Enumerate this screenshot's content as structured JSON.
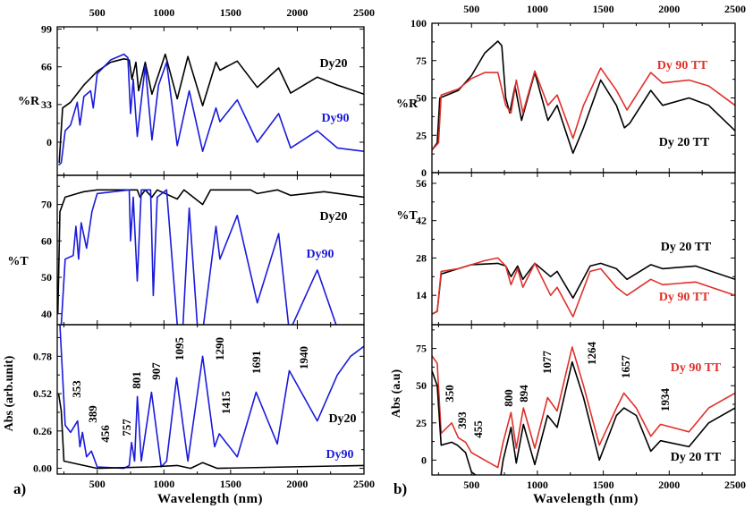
{
  "colors": {
    "black": "#000000",
    "blue": "#1a1adc",
    "red": "#e0302a"
  },
  "chart_data": [
    {
      "type": "line",
      "panel_label": "a)",
      "xlabel": "Wavelength (nm)",
      "xlim": [
        200,
        2500
      ],
      "xticks": [
        500,
        1000,
        1500,
        2000,
        2500
      ],
      "subplots": [
        {
          "ylabel": "%R",
          "ylim": [
            -29,
            101
          ],
          "yticks": [
            0,
            33,
            66,
            99
          ],
          "series": [
            {
              "name": "Dy20",
              "color": "#000000",
              "x": [
                215,
                240,
                300,
                400,
                500,
                600,
                700,
                740,
                760,
                790,
                810,
                860,
                910,
                1010,
                1100,
                1180,
                1290,
                1390,
                1420,
                1550,
                1700,
                1860,
                1950,
                2150,
                2300,
                2500
              ],
              "y": [
                -18,
                30,
                35,
                50,
                62,
                70,
                73,
                72,
                55,
                70,
                45,
                70,
                42,
                77,
                38,
                75,
                32,
                70,
                63,
                71,
                48,
                65,
                43,
                57,
                50,
                42
              ]
            },
            {
              "name": "Dy90",
              "color": "#1a1adc",
              "x": [
                210,
                230,
                260,
                300,
                350,
                370,
                400,
                450,
                470,
                500,
                600,
                700,
                730,
                750,
                770,
                800,
                860,
                910,
                960,
                1020,
                1100,
                1190,
                1290,
                1390,
                1420,
                1550,
                1700,
                1860,
                1950,
                2150,
                2300,
                2500
              ],
              "y": [
                -20,
                -18,
                10,
                15,
                35,
                15,
                40,
                45,
                30,
                60,
                72,
                77,
                74,
                25,
                55,
                5,
                67,
                2,
                50,
                70,
                -3,
                45,
                -8,
                30,
                18,
                37,
                0,
                25,
                -5,
                10,
                -5,
                -8
              ]
            }
          ]
        },
        {
          "ylabel": "%T",
          "ylim": [
            37,
            78
          ],
          "yticks": [
            40,
            50,
            60,
            70
          ],
          "series": [
            {
              "name": "Dy20",
              "color": "#000000",
              "x": [
                205,
                220,
                260,
                350,
                400,
                500,
                800,
                820,
                860,
                910,
                950,
                1100,
                1150,
                1290,
                1350,
                1650,
                1700,
                1850,
                1950,
                2200,
                2500
              ],
              "y": [
                40,
                68,
                72,
                73,
                73.5,
                74,
                74,
                72,
                74,
                72,
                74,
                71.5,
                74,
                70,
                74,
                74,
                73,
                74,
                72.5,
                73.5,
                72
              ]
            },
            {
              "name": "Dy90",
              "color": "#1a1adc",
              "x": [
                230,
                260,
                320,
                340,
                360,
                380,
                420,
                460,
                500,
                740,
                750,
                770,
                800,
                830,
                900,
                920,
                950,
                1020,
                1100,
                1140,
                1190,
                1250,
                1290,
                1390,
                1420,
                1550,
                1700,
                1860,
                1940,
                2150,
                2300
              ],
              "y": [
                37,
                55,
                56,
                64,
                55,
                65,
                58,
                68,
                73,
                74,
                60,
                72,
                49,
                74,
                74,
                45,
                72,
                74,
                37,
                35,
                69,
                37,
                35,
                64,
                55,
                67,
                43,
                62,
                35,
                52,
                36
              ]
            }
          ]
        },
        {
          "ylabel": "Abs (arb.unit)",
          "ylim": [
            -0.04,
            1.0
          ],
          "yticks": [
            0.0,
            0.26,
            0.52,
            0.78
          ],
          "series": [
            {
              "name": "Dy90",
              "color": "#1a1adc",
              "x": [
                220,
                260,
                300,
                353,
                370,
                389,
                420,
                456,
                500,
                700,
                740,
                757,
                780,
                801,
                830,
                907,
                980,
                1020,
                1095,
                1180,
                1290,
                1380,
                1415,
                1550,
                1691,
                1850,
                1940,
                2150,
                2300,
                2400,
                2500
              ],
              "y": [
                1.0,
                0.3,
                0.25,
                0.33,
                0.15,
                0.25,
                0.08,
                0.12,
                0.01,
                0,
                0.02,
                0.18,
                0.05,
                0.5,
                0.05,
                0.53,
                0.01,
                0.05,
                0.63,
                0.05,
                0.78,
                0.15,
                0.24,
                0.08,
                0.53,
                0.17,
                0.68,
                0.33,
                0.65,
                0.78,
                0.85
              ]
            },
            {
              "name": "Dy20",
              "color": "#000000",
              "x": [
                210,
                230,
                250,
                400,
                500,
                900,
                1100,
                1200,
                1290,
                1400,
                1940,
                2500
              ],
              "y": [
                0.52,
                0.4,
                0.05,
                0.02,
                0.0,
                0.01,
                0.02,
                0.0,
                0.04,
                0.0,
                0.01,
                0.02
              ]
            }
          ],
          "peak_labels": [
            "353",
            "389",
            "456",
            "757",
            "801",
            "907",
            "1095",
            "1290",
            "1415",
            "1691",
            "1940"
          ]
        }
      ]
    },
    {
      "type": "line",
      "panel_label": "b)",
      "xlabel": "Wavelength (nm)",
      "xlim": [
        200,
        2500
      ],
      "xticks": [
        500,
        1000,
        1500,
        2000,
        2500
      ],
      "subplots": [
        {
          "ylabel": "%R",
          "ylim": [
            0,
            100
          ],
          "yticks": [
            0,
            25,
            50,
            75,
            100
          ],
          "series": [
            {
              "name": "Dy 20 TT",
              "color": "#000000",
              "x": [
                200,
                240,
                260,
                400,
                500,
                600,
                700,
                730,
                760,
                790,
                830,
                880,
                980,
                1080,
                1150,
                1270,
                1350,
                1480,
                1600,
                1660,
                1700,
                1860,
                1950,
                2150,
                2300,
                2500
              ],
              "y": [
                15,
                20,
                50,
                55,
                65,
                80,
                88,
                85,
                50,
                40,
                58,
                35,
                67,
                35,
                45,
                13,
                30,
                62,
                45,
                30,
                33,
                55,
                45,
                50,
                45,
                28
              ]
            },
            {
              "name": "Dy 90 TT",
              "color": "#e0302a",
              "x": [
                200,
                250,
                270,
                400,
                500,
                600,
                700,
                760,
                800,
                840,
                890,
                980,
                1080,
                1150,
                1270,
                1350,
                1480,
                1600,
                1680,
                1860,
                1950,
                2150,
                2300,
                2500
              ],
              "y": [
                15,
                20,
                52,
                56,
                63,
                67,
                67,
                45,
                40,
                62,
                40,
                68,
                45,
                52,
                23,
                45,
                70,
                55,
                42,
                67,
                60,
                62,
                58,
                45
              ]
            }
          ]
        },
        {
          "ylabel": "%T",
          "ylim": [
            3,
            60
          ],
          "yticks": [
            14,
            28,
            42,
            56
          ],
          "series": [
            {
              "name": "Dy 20 TT",
              "color": "#000000",
              "x": [
                200,
                240,
                270,
                400,
                500,
                700,
                760,
                800,
                850,
                890,
                980,
                1100,
                1150,
                1270,
                1400,
                1480,
                1600,
                1680,
                1860,
                1950,
                2200,
                2500
              ],
              "y": [
                7,
                8,
                22,
                24,
                25.5,
                26,
                25,
                21,
                25,
                20,
                26,
                21,
                23,
                13,
                25,
                26,
                24,
                20,
                25.5,
                24,
                25,
                20
              ]
            },
            {
              "name": "Dy 90 TT",
              "color": "#e0302a",
              "x": [
                200,
                240,
                270,
                400,
                500,
                600,
                700,
                760,
                800,
                850,
                890,
                980,
                1100,
                1150,
                1270,
                1400,
                1480,
                1600,
                1680,
                1860,
                1950,
                2200,
                2500
              ],
              "y": [
                7,
                8,
                23,
                24,
                25.5,
                27,
                28,
                25,
                18,
                24,
                17,
                26,
                14,
                17,
                6,
                23,
                24,
                17,
                14,
                20,
                18,
                19,
                14
              ]
            }
          ]
        },
        {
          "ylabel": "Abs (a.u)",
          "ylim": [
            -10,
            91
          ],
          "yticks": [
            0,
            25,
            50,
            75
          ],
          "series": [
            {
              "name": "Dy 90 TT",
              "color": "#e0302a",
              "x": [
                200,
                240,
                270,
                350,
                400,
                455,
                500,
                700,
                740,
                800,
                840,
                894,
                980,
                1077,
                1150,
                1264,
                1350,
                1470,
                1600,
                1657,
                1750,
                1860,
                1934,
                2150,
                2300,
                2500
              ],
              "y": [
                70,
                65,
                18,
                25,
                15,
                12,
                5,
                -5,
                12,
                32,
                8,
                35,
                8,
                42,
                33,
                76,
                50,
                10,
                35,
                45,
                35,
                16,
                24,
                19,
                35,
                45
              ]
            },
            {
              "name": "Dy 20 TT",
              "color": "#000000",
              "x": [
                200,
                240,
                270,
                350,
                393,
                455,
                500,
                560,
                720,
                740,
                800,
                840,
                894,
                980,
                1077,
                1150,
                1264,
                1350,
                1470,
                1600,
                1657,
                1750,
                1860,
                1934,
                2150,
                2300,
                2500
              ],
              "y": [
                60,
                50,
                10,
                12,
                10,
                5,
                -8,
                -12,
                -12,
                0,
                22,
                -2,
                24,
                -3,
                30,
                22,
                66,
                42,
                0,
                30,
                35,
                30,
                6,
                13,
                9,
                25,
                35
              ]
            }
          ],
          "peak_labels": [
            "350",
            "393",
            "455",
            "800",
            "894",
            "1077",
            "1264",
            "1657",
            "1934"
          ]
        }
      ]
    }
  ]
}
